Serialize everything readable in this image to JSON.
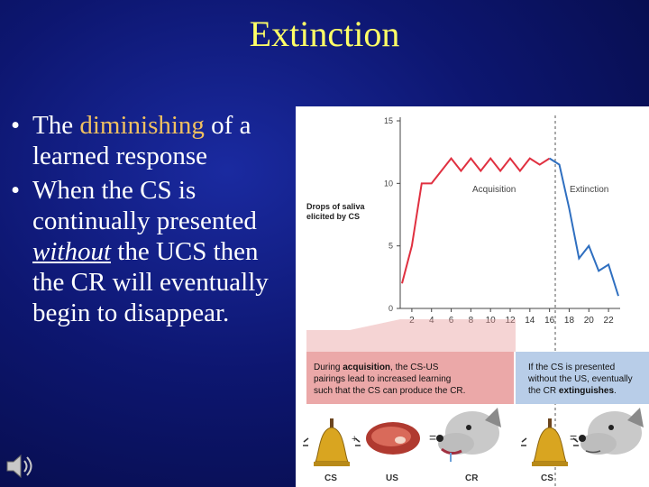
{
  "slide": {
    "title": "Extinction",
    "bullet1": {
      "before": "The ",
      "highlight": "diminishing",
      "after": " of a learned response"
    },
    "bullet2": {
      "before": "When the CS is continually presented ",
      "emphasis": "without",
      "after": " the UCS then the CR will eventually begin to disappear."
    }
  },
  "colors": {
    "title": "#ffff66",
    "highlight": "#f0c060",
    "acquisition_line": "#e03040",
    "extinction_line": "#2f6fc0"
  },
  "figure": {
    "ylabel_line1": "Drops of saliva",
    "ylabel_line2": "elicited by CS",
    "acquisition_label": "Acquisition",
    "extinction_label": "Extinction",
    "acq_caption": {
      "l1_pre": "During ",
      "l1_bold": "acquisition",
      "l1_post": ", the CS-US",
      "l2": "pairings lead to increased learning",
      "l3": "such that the CS can produce the CR."
    },
    "ext_caption": {
      "l1": "If the CS is presented",
      "l2": "without the US, eventually",
      "l3_pre": "the CR ",
      "l3_bold": "extinguishes",
      "l3_post": "."
    },
    "labels": {
      "cs1": "CS",
      "us": "US",
      "cr": "CR",
      "cs2": "CS",
      "plus": "+",
      "eq1": "=",
      "eq2": "="
    },
    "icons": [
      "bell-icon",
      "steak-icon",
      "dog-salivating-icon",
      "dog-icon",
      "speaker-icon"
    ]
  },
  "chart_data": {
    "type": "line",
    "ylim": [
      0,
      15
    ],
    "yticks": [
      "0",
      "5",
      "10",
      "15"
    ],
    "xticks": [
      "2",
      "4",
      "6",
      "8",
      "10",
      "12",
      "14",
      "16",
      "18",
      "20",
      "22"
    ],
    "series": [
      {
        "name": "Acquisition",
        "x": [
          1,
          2,
          3,
          4,
          5,
          6,
          7,
          8,
          9,
          10,
          11,
          12,
          13,
          14,
          15,
          16
        ],
        "values": [
          2,
          5,
          10,
          10,
          11,
          12,
          11,
          12,
          11,
          12,
          11,
          12,
          11,
          12,
          11.5,
          12
        ]
      },
      {
        "name": "Extinction",
        "x": [
          16,
          17,
          18,
          19,
          20,
          21,
          22,
          23
        ],
        "values": [
          12,
          11.5,
          8,
          4,
          5,
          3,
          3.5,
          1
        ]
      }
    ]
  }
}
